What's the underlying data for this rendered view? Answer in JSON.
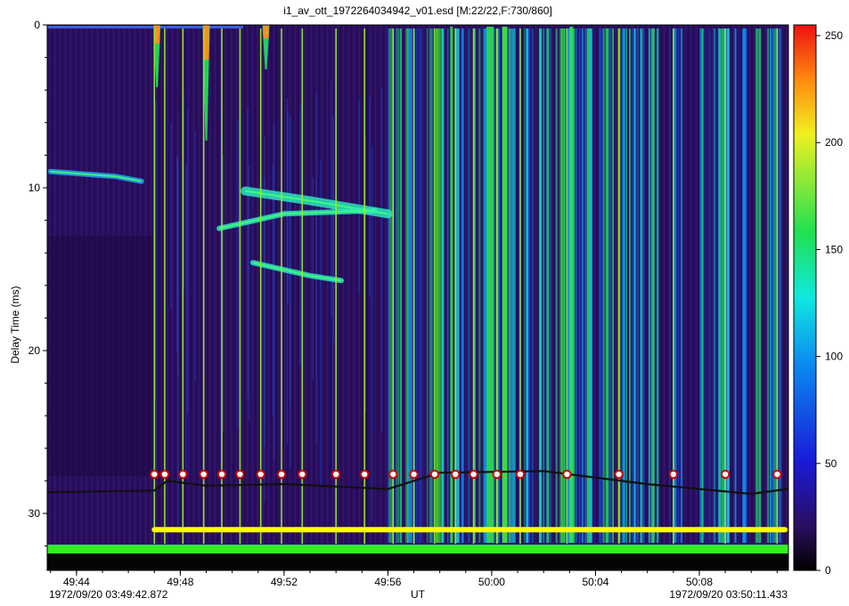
{
  "title": "i1_av_ott_1972264034942_v01.esd [M:22/22,F:730/860]",
  "ylabel": "Delay Time (ms)",
  "xlabel": "UT",
  "start_time": "1972/09/20 03:49:42.872",
  "end_time": "1972/09/20 03:50:11.433",
  "colors": {
    "background_low": "#2a0f5e",
    "trace_line": "#66ee22",
    "marker_line": "#ffff00",
    "bottom_band": "#33ee22",
    "marker_face": "#ffffff",
    "marker_edge": "#cc0000"
  },
  "chart_data": {
    "type": "heatmap",
    "title": "i1_av_ott_1972264034942_v01.esd [M:22/22,F:730/860]",
    "xlabel": "UT",
    "ylabel": "Delay Time (ms)",
    "x_ticks": [
      "49:44",
      "49:48",
      "49:52",
      "49:56",
      "50:00",
      "50:04",
      "50:08"
    ],
    "y_ticks": [
      0,
      10,
      20,
      30
    ],
    "ylim": [
      0,
      33.5
    ],
    "y_inverted": true,
    "colorbar": {
      "ticks": [
        0,
        50,
        100,
        150,
        200,
        250
      ],
      "range": [
        0,
        255
      ],
      "colormap": "jet"
    },
    "x_start_seconds": 42.872,
    "x_end_seconds": 71.433,
    "marker_times_sec": [
      47.0,
      47.4,
      48.1,
      48.9,
      49.6,
      50.3,
      51.1,
      51.9,
      52.7,
      54.0,
      55.1,
      56.2,
      57.0,
      57.8,
      58.6,
      59.3,
      60.2,
      61.1,
      62.9,
      64.9,
      67.0,
      69.0,
      71.0
    ],
    "marker_delay_ms": 27.6,
    "yellow_bar": {
      "from_sec": 47.0,
      "to_sec": 71.3,
      "delay_ms": 31.0
    },
    "echo_traces": [
      {
        "name": "",
        "points": [
          [
            43.0,
            9.0
          ],
          [
            45.5,
            9.3
          ],
          [
            46.5,
            9.6
          ]
        ]
      },
      {
        "name": "",
        "points": [
          [
            50.5,
            10.2
          ],
          [
            53.0,
            10.8
          ],
          [
            56.0,
            11.6
          ]
        ]
      },
      {
        "name": "",
        "points": [
          [
            49.5,
            12.5
          ],
          [
            52.0,
            11.6
          ],
          [
            55.5,
            11.4
          ]
        ]
      },
      {
        "name": "",
        "points": [
          [
            50.8,
            14.6
          ],
          [
            53.0,
            15.4
          ],
          [
            54.2,
            15.7
          ]
        ]
      }
    ],
    "baseline_trace": [
      [
        42.9,
        28.7
      ],
      [
        47.0,
        28.6
      ],
      [
        47.5,
        28.0
      ],
      [
        49.0,
        28.3
      ],
      [
        52.0,
        28.2
      ],
      [
        56.0,
        28.5
      ],
      [
        58.0,
        27.5
      ],
      [
        62.0,
        27.4
      ],
      [
        66.0,
        28.2
      ],
      [
        68.0,
        28.5
      ],
      [
        70.0,
        28.8
      ],
      [
        71.4,
        28.5
      ]
    ]
  }
}
